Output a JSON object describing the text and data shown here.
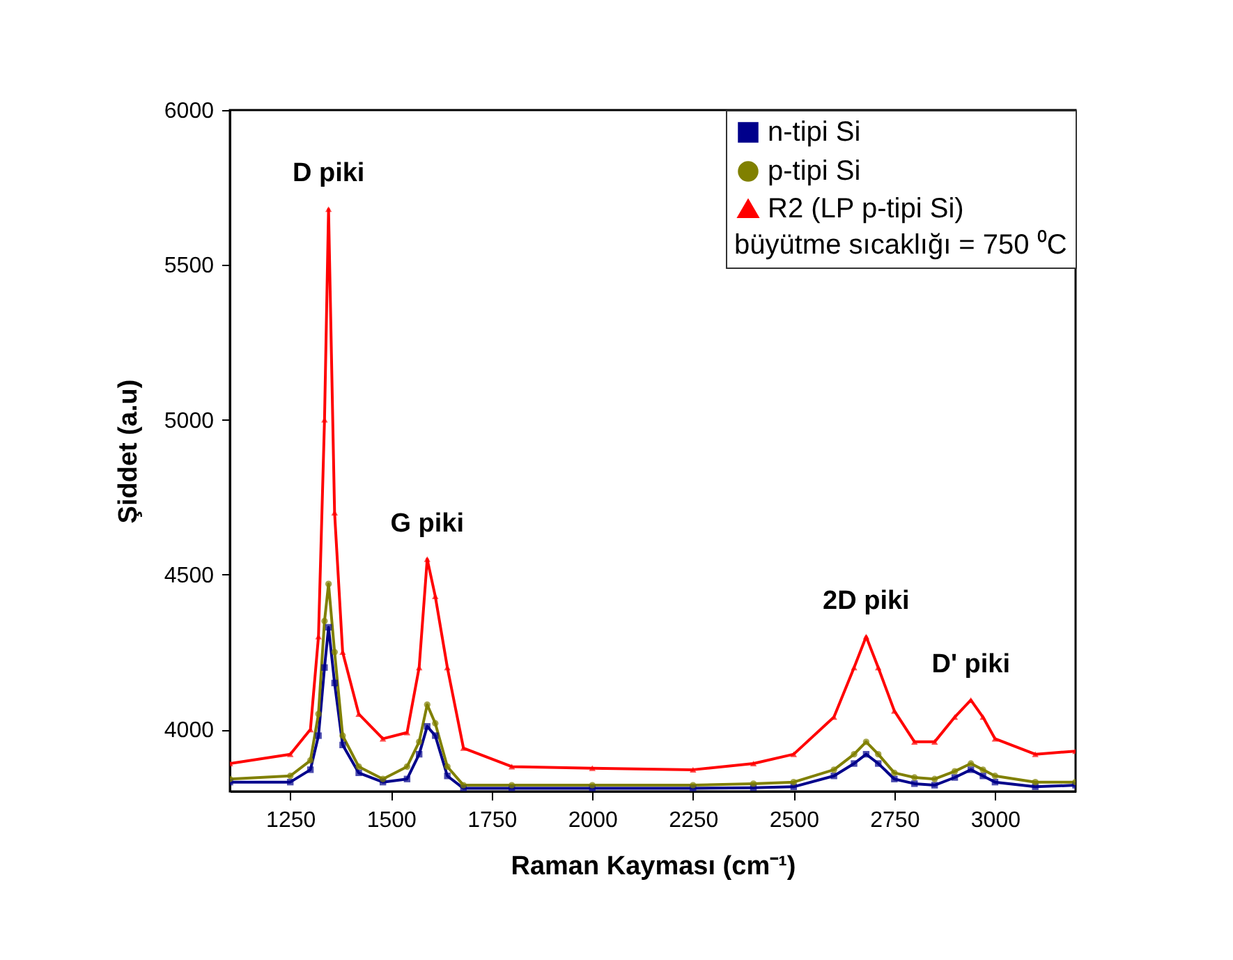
{
  "chart_data": {
    "type": "line",
    "xlabel": "Raman Kayması (cm⁻¹)",
    "ylabel": "Şiddet (a.u)",
    "legend_title": "büyütme sıcaklığı = 750 ⁰C",
    "legend": "top right",
    "grid": false,
    "xlim": [
      1100,
      3200
    ],
    "xticks": [
      1250,
      1500,
      1750,
      2000,
      2250,
      2500,
      2750,
      3000
    ],
    "ylim": [
      3800,
      6000
    ],
    "yticks": [
      4000,
      4500,
      5000,
      5500,
      6000
    ],
    "x": [
      1100,
      1250,
      1300,
      1320,
      1335,
      1345,
      1360,
      1380,
      1420,
      1480,
      1540,
      1570,
      1590,
      1610,
      1640,
      1680,
      1800,
      2000,
      2250,
      2400,
      2500,
      2600,
      2650,
      2680,
      2710,
      2750,
      2800,
      2850,
      2900,
      2940,
      2970,
      3000,
      3100,
      3200
    ],
    "series": [
      {
        "name": "n-tipi Si",
        "color": "#00008b",
        "marker": "square",
        "values": [
          3830,
          3830,
          3870,
          3980,
          4200,
          4330,
          4150,
          3950,
          3860,
          3830,
          3840,
          3920,
          4010,
          3980,
          3850,
          3810,
          3810,
          3810,
          3810,
          3812,
          3815,
          3850,
          3890,
          3920,
          3890,
          3840,
          3825,
          3820,
          3845,
          3870,
          3850,
          3830,
          3815,
          3820
        ]
      },
      {
        "name": "p-tipi Si",
        "color": "#808000",
        "marker": "circle",
        "values": [
          3840,
          3850,
          3900,
          4050,
          4350,
          4470,
          4250,
          3980,
          3880,
          3840,
          3880,
          3960,
          4080,
          4020,
          3880,
          3820,
          3820,
          3820,
          3820,
          3825,
          3830,
          3870,
          3920,
          3960,
          3920,
          3860,
          3845,
          3840,
          3865,
          3890,
          3870,
          3850,
          3830,
          3830
        ]
      },
      {
        "name": "R2 (LP  p-tipi Si)",
        "color": "#ff0000",
        "marker": "triangle",
        "values": [
          3890,
          3920,
          4000,
          4300,
          5000,
          5680,
          4700,
          4250,
          4050,
          3970,
          3990,
          4200,
          4550,
          4430,
          4200,
          3940,
          3880,
          3875,
          3870,
          3890,
          3920,
          4040,
          4200,
          4300,
          4200,
          4060,
          3960,
          3960,
          4040,
          4095,
          4040,
          3970,
          3920,
          3930
        ]
      }
    ],
    "annotations": [
      {
        "text": "D piki",
        "x": 1345,
        "y": 5680
      },
      {
        "text": "G piki",
        "x": 1590,
        "y": 4550
      },
      {
        "text": "2D piki",
        "x": 2680,
        "y": 4300
      },
      {
        "text": "D' piki",
        "x": 2940,
        "y": 4095
      }
    ]
  }
}
